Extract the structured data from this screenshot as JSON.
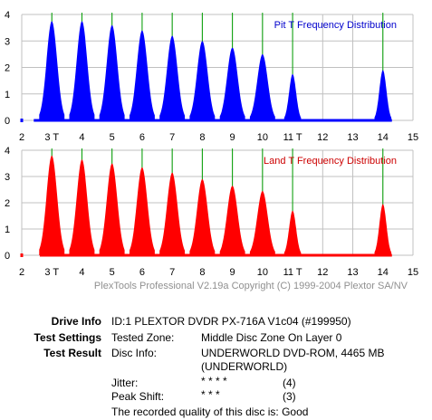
{
  "chart_data": [
    {
      "type": "area",
      "title": "Pit T Frequency Distribution",
      "title_color": "#0000cc",
      "fill_color": "#0000ff",
      "grid": true,
      "ylim": [
        0,
        4
      ],
      "xlim": [
        2,
        15
      ],
      "y_ticks": [
        "0",
        "1",
        "2",
        "3",
        "4"
      ],
      "x_ticks": [
        "2",
        "3 T",
        "4",
        "5",
        "6",
        "7",
        "8",
        "9",
        "10",
        "11 T",
        "12",
        "13",
        "14",
        "15"
      ],
      "reference_lines_x": [
        3,
        4,
        5,
        6,
        7,
        8,
        9,
        10,
        11,
        14
      ],
      "peaks": [
        {
          "x": 3.0,
          "y": 3.75
        },
        {
          "x": 4.0,
          "y": 3.75
        },
        {
          "x": 5.0,
          "y": 3.6
        },
        {
          "x": 6.0,
          "y": 3.4
        },
        {
          "x": 7.0,
          "y": 3.2
        },
        {
          "x": 8.0,
          "y": 3.0
        },
        {
          "x": 9.0,
          "y": 2.75
        },
        {
          "x": 10.0,
          "y": 2.5
        },
        {
          "x": 11.0,
          "y": 1.75
        },
        {
          "x": 14.0,
          "y": 1.9
        }
      ],
      "baseline_extent": [
        2.4,
        14.3
      ]
    },
    {
      "type": "area",
      "title": "Land T Frequency Distribution",
      "title_color": "#cc0000",
      "fill_color": "#ff0000",
      "grid": true,
      "ylim": [
        0,
        4
      ],
      "xlim": [
        2,
        15
      ],
      "y_ticks": [
        "0",
        "1",
        "2",
        "3",
        "4"
      ],
      "x_ticks": [
        "2",
        "3 T",
        "4",
        "5",
        "6",
        "7",
        "8",
        "9",
        "10",
        "11 T",
        "12",
        "13",
        "14",
        "15"
      ],
      "reference_lines_x": [
        3,
        4,
        5,
        6,
        7,
        8,
        9,
        10,
        11,
        14
      ],
      "peaks": [
        {
          "x": 3.0,
          "y": 3.8
        },
        {
          "x": 4.0,
          "y": 3.65
        },
        {
          "x": 5.0,
          "y": 3.5
        },
        {
          "x": 6.0,
          "y": 3.35
        },
        {
          "x": 7.0,
          "y": 3.15
        },
        {
          "x": 8.0,
          "y": 2.9
        },
        {
          "x": 9.0,
          "y": 2.65
        },
        {
          "x": 10.0,
          "y": 2.45
        },
        {
          "x": 11.0,
          "y": 1.7
        },
        {
          "x": 14.0,
          "y": 1.95
        }
      ],
      "baseline_extent": [
        2.6,
        14.3
      ]
    }
  ],
  "copyright": "PlexTools Professional V2.19a Copyright (C) 1999-2004 Plextor SA/NV",
  "info": {
    "drive_info_label": "Drive Info",
    "drive_info_value": "ID:1 PLEXTOR DVDR PX-716A V1c04 (#199950)",
    "test_settings_label": "Test Settings",
    "tested_zone_key": "Tested Zone:",
    "tested_zone_value": "Middle Disc Zone On Layer 0",
    "test_result_label": "Test Result",
    "disc_info_key": "Disc Info:",
    "disc_info_value_1": "UNDERWORLD DVD-ROM, 4465 MB",
    "disc_info_value_2": "(UNDERWORLD)",
    "jitter_key": "Jitter:",
    "jitter_stars": "* * * *",
    "jitter_score": "(4)",
    "peak_shift_key": "Peak Shift:",
    "peak_shift_stars": "* * *",
    "peak_shift_score": "(3)",
    "quality_text": "The recorded quality of this disc is: Good"
  }
}
